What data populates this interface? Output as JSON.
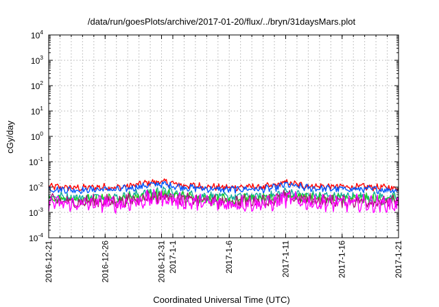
{
  "chart_data": {
    "type": "line",
    "title": "/data/run/goesPlots/archive/2017-01-20/flux/../bryn/31daysMars.plot",
    "xlabel": "Coordinated Universal Time (UTC)",
    "ylabel": "cGy/day",
    "yscale": "log",
    "ylim": [
      0.0001,
      10000
    ],
    "xlim": [
      "2016-12-21",
      "2017-01-21"
    ],
    "grid": true,
    "legend": "none",
    "y_ticks": [
      {
        "base": "10",
        "exp": "-4",
        "value": 0.0001
      },
      {
        "base": "10",
        "exp": "-3",
        "value": 0.001
      },
      {
        "base": "10",
        "exp": "-2",
        "value": 0.01
      },
      {
        "base": "10",
        "exp": "-1",
        "value": 0.1
      },
      {
        "base": "10",
        "exp": "0",
        "value": 1
      },
      {
        "base": "10",
        "exp": "1",
        "value": 10
      },
      {
        "base": "10",
        "exp": "2",
        "value": 100
      },
      {
        "base": "10",
        "exp": "3",
        "value": 1000
      },
      {
        "base": "10",
        "exp": "4",
        "value": 10000
      }
    ],
    "x_ticks": [
      {
        "label": "2016-12-21",
        "date": "2016-12-21"
      },
      {
        "label": "2016-12-26",
        "date": "2016-12-26"
      },
      {
        "label": "2016-12-31",
        "date": "2016-12-31"
      },
      {
        "label": "2017-1-1",
        "date": "2017-01-01"
      },
      {
        "label": "2017-1-6",
        "date": "2017-01-06"
      },
      {
        "label": "2017-1-11",
        "date": "2017-01-11"
      },
      {
        "label": "2017-1-16",
        "date": "2017-01-16"
      },
      {
        "label": "2017-1-21",
        "date": "2017-01-21"
      }
    ],
    "x": [
      "2016-12-21",
      "2016-12-22",
      "2016-12-23",
      "2016-12-24",
      "2016-12-25",
      "2016-12-26",
      "2016-12-27",
      "2016-12-28",
      "2016-12-29",
      "2016-12-30",
      "2016-12-31",
      "2017-01-01",
      "2017-01-02",
      "2017-01-03",
      "2017-01-04",
      "2017-01-05",
      "2017-01-06",
      "2017-01-07",
      "2017-01-08",
      "2017-01-09",
      "2017-01-10",
      "2017-01-11",
      "2017-01-12",
      "2017-01-13",
      "2017-01-14",
      "2017-01-15",
      "2017-01-16",
      "2017-01-17",
      "2017-01-18",
      "2017-01-19",
      "2017-01-20",
      "2017-01-21"
    ],
    "series": [
      {
        "color": "#ff0000",
        "values": [
          0.0105,
          0.0098,
          0.0095,
          0.0092,
          0.0097,
          0.0101,
          0.0094,
          0.0108,
          0.0125,
          0.0152,
          0.0162,
          0.0138,
          0.0118,
          0.0112,
          0.0105,
          0.0099,
          0.0096,
          0.0101,
          0.0104,
          0.0099,
          0.0112,
          0.0155,
          0.0125,
          0.0112,
          0.0108,
          0.0104,
          0.0103,
          0.0102,
          0.0101,
          0.0098,
          0.0096,
          0.009
        ]
      },
      {
        "color": "#0055ff",
        "values": [
          0.0086,
          0.008,
          0.0078,
          0.0075,
          0.0079,
          0.0083,
          0.0077,
          0.0088,
          0.0103,
          0.0123,
          0.0132,
          0.0113,
          0.0097,
          0.0092,
          0.0086,
          0.0081,
          0.0079,
          0.0083,
          0.0085,
          0.0081,
          0.0092,
          0.0127,
          0.0103,
          0.0092,
          0.0088,
          0.0085,
          0.0084,
          0.0083,
          0.0082,
          0.008,
          0.0078,
          0.0074
        ]
      },
      {
        "color": "#11aa99",
        "values": [
          0.0044,
          0.0041,
          0.004,
          0.0038,
          0.004,
          0.0042,
          0.0039,
          0.0045,
          0.0052,
          0.0062,
          0.0067,
          0.0057,
          0.0049,
          0.0047,
          0.0044,
          0.0041,
          0.004,
          0.0042,
          0.0043,
          0.0041,
          0.0047,
          0.0064,
          0.0052,
          0.0047,
          0.0045,
          0.0043,
          0.0043,
          0.0042,
          0.0042,
          0.0041,
          0.004,
          0.0038
        ]
      },
      {
        "color": "#22cc22",
        "values": [
          0.0035,
          0.0033,
          0.0032,
          0.0031,
          0.0032,
          0.0034,
          0.0031,
          0.0036,
          0.0042,
          0.005,
          0.0054,
          0.0046,
          0.0039,
          0.0037,
          0.0035,
          0.0033,
          0.0032,
          0.0034,
          0.0035,
          0.0033,
          0.0037,
          0.0051,
          0.0042,
          0.0037,
          0.0036,
          0.0035,
          0.0034,
          0.0034,
          0.0034,
          0.0033,
          0.0032,
          0.003
        ]
      },
      {
        "color": "#aa1177",
        "values": [
          0.0029,
          0.0027,
          0.0026,
          0.0025,
          0.0027,
          0.0028,
          0.0026,
          0.003,
          0.0035,
          0.0041,
          0.0045,
          0.0038,
          0.0032,
          0.0031,
          0.0029,
          0.0027,
          0.0026,
          0.0028,
          0.0029,
          0.0027,
          0.0031,
          0.0043,
          0.0035,
          0.0031,
          0.003,
          0.0029,
          0.0028,
          0.0028,
          0.0028,
          0.0027,
          0.0026,
          0.0025
        ]
      },
      {
        "color": "#ff00ff",
        "values": [
          0.0024,
          0.0022,
          0.0021,
          0.0021,
          0.0022,
          0.0023,
          0.0021,
          0.0024,
          0.0028,
          0.0034,
          0.0036,
          0.0031,
          0.0026,
          0.0025,
          0.0024,
          0.0022,
          0.0021,
          0.0023,
          0.0023,
          0.0022,
          0.0025,
          0.0035,
          0.0028,
          0.0025,
          0.0024,
          0.0023,
          0.0023,
          0.0023,
          0.0023,
          0.0022,
          0.0021,
          0.002
        ]
      }
    ]
  }
}
